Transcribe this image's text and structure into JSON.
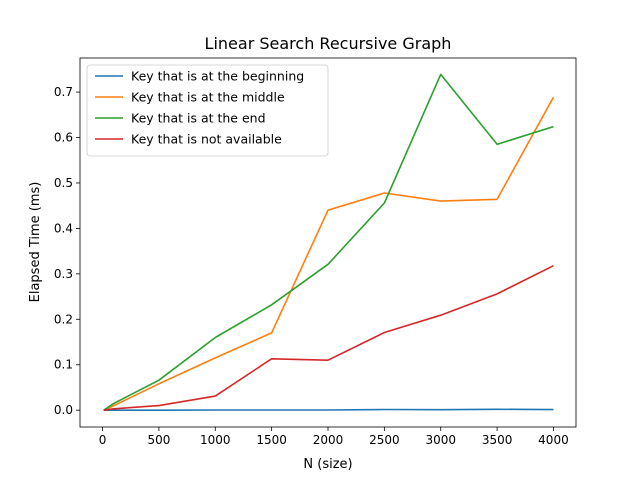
{
  "chart_data": {
    "type": "line",
    "title": "Linear Search Recursive Graph",
    "xlabel": "N (size)",
    "ylabel": "Elapsed Time (ms)",
    "xlim": [
      -200,
      4200
    ],
    "ylim": [
      -0.037,
      0.775
    ],
    "xticks": [
      0,
      500,
      1000,
      1500,
      2000,
      2500,
      3000,
      3500,
      4000
    ],
    "xtick_labels": [
      "0",
      "500",
      "1000",
      "1500",
      "2000",
      "2500",
      "3000",
      "3500",
      "4000"
    ],
    "yticks": [
      0.0,
      0.1,
      0.2,
      0.3,
      0.4,
      0.5,
      0.6,
      0.7
    ],
    "ytick_labels": [
      "0.0",
      "0.1",
      "0.2",
      "0.3",
      "0.4",
      "0.5",
      "0.6",
      "0.7"
    ],
    "grid": false,
    "legend_position": "top-left",
    "x": [
      10,
      100,
      500,
      1000,
      1500,
      2000,
      2500,
      3000,
      3500,
      4000
    ],
    "series": [
      {
        "name": "Key that is at the beginning",
        "color": "#1f77b4",
        "values": [
          0.0,
          0.0,
          0.0,
          0.0005,
          0.0003,
          0.0005,
          0.0015,
          0.001,
          0.002,
          0.0012
        ]
      },
      {
        "name": "Key that is at the middle",
        "color": "#ff7f0e",
        "values": [
          0.0,
          0.01,
          0.058,
          0.115,
          0.17,
          0.44,
          0.478,
          0.46,
          0.464,
          0.689
        ]
      },
      {
        "name": "Key that is at the end",
        "color": "#2ca02c",
        "values": [
          0.0,
          0.015,
          0.066,
          0.16,
          0.232,
          0.321,
          0.456,
          0.739,
          0.585,
          0.624
        ]
      },
      {
        "name": "Key that is not available",
        "color": "#d62728",
        "values": [
          0.0,
          0.003,
          0.01,
          0.031,
          0.113,
          0.11,
          0.171,
          0.209,
          0.256,
          0.318
        ]
      }
    ]
  }
}
